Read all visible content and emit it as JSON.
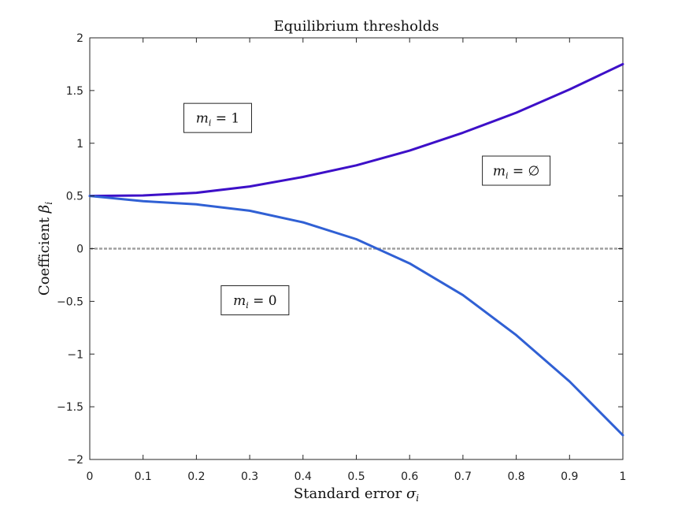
{
  "chart_data": {
    "type": "line",
    "title": "Equilibrium thresholds",
    "xlabel": {
      "text": "Standard error ",
      "symbol": "σ",
      "sub": "i"
    },
    "ylabel": {
      "text": "Coefficient ",
      "symbol": "β",
      "sub": "i"
    },
    "xlim": [
      0,
      1
    ],
    "ylim": [
      -2,
      2
    ],
    "x_ticks": [
      0,
      0.1,
      0.2,
      0.3,
      0.4,
      0.5,
      0.6,
      0.7,
      0.8,
      0.9,
      1
    ],
    "x_tick_labels": [
      "0",
      "0.1",
      "0.2",
      "0.3",
      "0.4",
      "0.5",
      "0.6",
      "0.7",
      "0.8",
      "0.9",
      "1"
    ],
    "y_ticks": [
      2,
      1.5,
      1,
      0.5,
      0,
      -0.5,
      -1,
      -1.5,
      -2
    ],
    "y_tick_labels": [
      "2",
      "1.5",
      "1",
      "0.5",
      "0",
      "−0.5",
      "−1",
      "−1.5",
      "−2"
    ],
    "grid": false,
    "x": [
      0,
      0.1,
      0.2,
      0.3,
      0.4,
      0.5,
      0.6,
      0.7,
      0.8,
      0.9,
      1
    ],
    "series": [
      {
        "values": [
          0.5,
          0.505,
          0.53,
          0.59,
          0.68,
          0.79,
          0.93,
          1.1,
          1.29,
          1.51,
          1.75
        ],
        "color": "#3d10c8"
      },
      {
        "values": [
          0.5,
          0.45,
          0.42,
          0.36,
          0.25,
          0.09,
          -0.14,
          -0.44,
          -0.82,
          -1.26,
          -1.77
        ],
        "color": "#3060d4"
      }
    ],
    "reference_line": {
      "y": 0,
      "color": "#a0a0a0",
      "style": "dashed"
    },
    "annotations": [
      {
        "symbol": "m",
        "sub": "i",
        "rhs": " = 1",
        "x": 0.24,
        "y": 1.24
      },
      {
        "symbol": "m",
        "sub": "i",
        "rhs": " = ∅",
        "x": 0.8,
        "y": 0.74
      },
      {
        "symbol": "m",
        "sub": "i",
        "rhs": " = 0",
        "x": 0.31,
        "y": -0.49
      }
    ]
  }
}
